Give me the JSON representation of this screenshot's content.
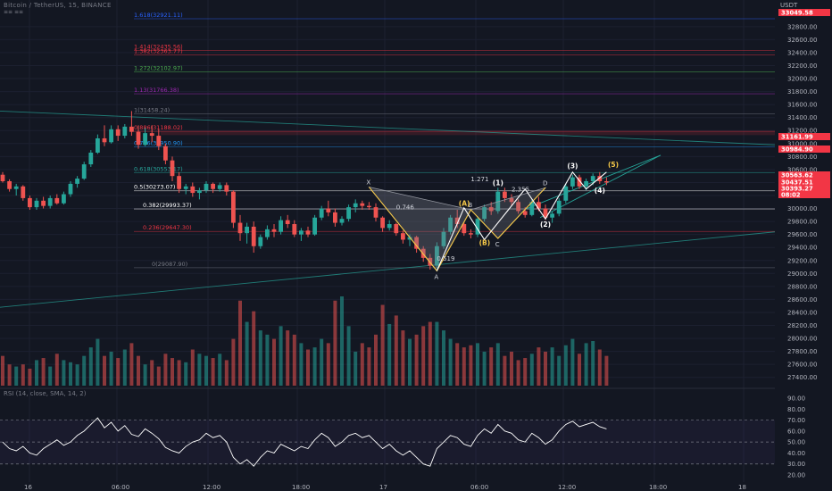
{
  "header": {
    "symbol_line": "Bitcoin / TetherUS, 15, BINANCE",
    "sub": "≡≡ ≡≡"
  },
  "price_axis": {
    "currency": "USDT",
    "ticks": [
      "32800.00",
      "32600.00",
      "32400.00",
      "32200.00",
      "32000.00",
      "31800.00",
      "31600.00",
      "31400.00",
      "31200.00",
      "31000.00",
      "30800.00",
      "30600.00",
      "30400.00",
      "30200.00",
      "30000.00",
      "29800.00",
      "29600.00",
      "29400.00",
      "29200.00",
      "29000.00",
      "28800.00",
      "28600.00",
      "28400.00",
      "28200.00",
      "28000.00",
      "27800.00",
      "27600.00",
      "27400.00"
    ]
  },
  "price_labels": [
    {
      "text": "33049.58",
      "color": "#f23645"
    },
    {
      "text": "31161.99",
      "color": "#f23645"
    },
    {
      "text": "30984.90",
      "color": "#f23645"
    },
    {
      "text": "30563.62",
      "color": "#f23645"
    },
    {
      "text": "30437.51",
      "color": "#f23645"
    },
    {
      "text": "30393.27",
      "color": "#f23645"
    },
    {
      "text": "08:02",
      "color": "#f23645"
    }
  ],
  "rsi_axis": {
    "ticks": [
      "90.00",
      "80.00",
      "70.00",
      "60.00",
      "50.00",
      "40.00",
      "30.00",
      "20.00"
    ]
  },
  "time_axis": {
    "ticks": [
      "16",
      "06:00",
      "12:00",
      "18:00",
      "17",
      "06:00",
      "12:00",
      "18:00",
      "18"
    ]
  },
  "fib_levels": [
    {
      "label": "1.618(32921.11)",
      "price": 32921,
      "color": "#2962ff"
    },
    {
      "label": "1.414(32435.56)",
      "price": 32435,
      "color": "#f23645"
    },
    {
      "label": "1.382(32363.77)",
      "price": 32363,
      "color": "#f23645"
    },
    {
      "label": "1.272(32102.97)",
      "price": 32103,
      "color": "#4caf50"
    },
    {
      "label": "1.13(31766.38)",
      "price": 31766,
      "color": "#9c27b0"
    },
    {
      "label": "1(31458.24)",
      "price": 31458,
      "color": "#787b86"
    },
    {
      "label": "0.886(31188.02)",
      "price": 31188,
      "color": "#f23645"
    },
    {
      "label": "0.786(30950.90)",
      "price": 30951,
      "color": "#2196f3"
    },
    {
      "label": "0.618(30553.17)",
      "price": 30553,
      "color": "#26a69a"
    },
    {
      "label": "0.5(30273.07)",
      "price": 30273,
      "color": "#ffffff"
    },
    {
      "label": "0.382(29993.37)",
      "price": 29993,
      "color": "#ffffff"
    },
    {
      "label": "0.236(29647.30)",
      "price": 29647,
      "color": "#f23645"
    },
    {
      "label": "0(29087.90)",
      "price": 29088,
      "color": "#787b86"
    }
  ],
  "pattern": {
    "points": [
      {
        "label": "X",
        "time": 54,
        "price": 30330
      },
      {
        "label": "A",
        "time": 64,
        "price": 29040
      },
      {
        "label": "B",
        "time": 69,
        "price": 29980
      },
      {
        "label": "C",
        "time": 73,
        "price": 29540
      },
      {
        "label": "D",
        "time": 80,
        "price": 30320
      }
    ],
    "ratios": [
      "0.746",
      "0.519",
      "1.271",
      "2.355"
    ],
    "wave_labels": [
      "(A)",
      "(B)",
      "(1)",
      "(2)",
      "(3)",
      "(4)",
      "(5)"
    ]
  },
  "indicator": {
    "title": "RSI (14, close, SMA, 14, 2)"
  },
  "chart_data": {
    "type": "candlestick",
    "title": "Bitcoin / TetherUS, 15, BINANCE",
    "ylim": [
      27300,
      33100
    ],
    "rsi_ylim": [
      20,
      90
    ],
    "rsi_bands": [
      70,
      50,
      30
    ],
    "colors": {
      "up": "#26a69a",
      "down": "#ef5350"
    },
    "candles": [
      [
        30520,
        30560,
        30400,
        30420
      ],
      [
        30420,
        30450,
        30260,
        30300
      ],
      [
        30300,
        30380,
        30200,
        30340
      ],
      [
        30340,
        30360,
        30120,
        30160
      ],
      [
        30160,
        30200,
        29980,
        30020
      ],
      [
        30020,
        30160,
        29980,
        30120
      ],
      [
        30120,
        30180,
        30000,
        30040
      ],
      [
        30040,
        30200,
        30000,
        30160
      ],
      [
        30160,
        30220,
        30060,
        30080
      ],
      [
        30080,
        30260,
        30060,
        30220
      ],
      [
        30220,
        30420,
        30180,
        30380
      ],
      [
        30380,
        30500,
        30320,
        30460
      ],
      [
        30460,
        30720,
        30440,
        30680
      ],
      [
        30680,
        30900,
        30640,
        30860
      ],
      [
        30860,
        31140,
        30840,
        31080
      ],
      [
        31080,
        31280,
        30960,
        31020
      ],
      [
        31020,
        31280,
        31000,
        31220
      ],
      [
        31220,
        31280,
        31040,
        31120
      ],
      [
        31120,
        31300,
        31080,
        31260
      ],
      [
        31260,
        31500,
        31120,
        31180
      ],
      [
        31180,
        31280,
        30920,
        30980
      ],
      [
        30980,
        31240,
        30960,
        31160
      ],
      [
        31160,
        31280,
        31020,
        31120
      ],
      [
        31120,
        31220,
        30900,
        30960
      ],
      [
        30960,
        31000,
        30680,
        30740
      ],
      [
        30740,
        30800,
        30420,
        30500
      ],
      [
        30500,
        30560,
        30240,
        30300
      ],
      [
        30300,
        30380,
        30220,
        30340
      ],
      [
        30340,
        30400,
        30180,
        30240
      ],
      [
        30240,
        30320,
        30140,
        30280
      ],
      [
        30280,
        30420,
        30240,
        30380
      ],
      [
        30380,
        30400,
        30240,
        30300
      ],
      [
        30300,
        30400,
        30260,
        30360
      ],
      [
        30360,
        30400,
        30200,
        30260
      ],
      [
        30260,
        30280,
        29700,
        29780
      ],
      [
        29780,
        29900,
        29500,
        29620
      ],
      [
        29620,
        29780,
        29460,
        29720
      ],
      [
        29720,
        29800,
        29320,
        29420
      ],
      [
        29420,
        29600,
        29380,
        29560
      ],
      [
        29560,
        29740,
        29520,
        29680
      ],
      [
        29680,
        29760,
        29560,
        29640
      ],
      [
        29640,
        29880,
        29600,
        29820
      ],
      [
        29820,
        29900,
        29700,
        29760
      ],
      [
        29760,
        29820,
        29560,
        29600
      ],
      [
        29600,
        29700,
        29500,
        29660
      ],
      [
        29660,
        29720,
        29560,
        29600
      ],
      [
        29600,
        29900,
        29580,
        29860
      ],
      [
        29860,
        30040,
        29820,
        30000
      ],
      [
        30000,
        30120,
        29880,
        29940
      ],
      [
        29940,
        30000,
        29720,
        29780
      ],
      [
        29780,
        29880,
        29740,
        29840
      ],
      [
        29840,
        30060,
        29800,
        30020
      ],
      [
        30020,
        30140,
        29940,
        30080
      ],
      [
        30080,
        30120,
        29980,
        30040
      ],
      [
        30040,
        30100,
        29980,
        30020
      ],
      [
        30020,
        30080,
        29800,
        29860
      ],
      [
        29860,
        29880,
        29640,
        29700
      ],
      [
        29700,
        29820,
        29660,
        29760
      ],
      [
        29760,
        29780,
        29580,
        29620
      ],
      [
        29620,
        29660,
        29460,
        29520
      ],
      [
        29520,
        29600,
        29420,
        29560
      ],
      [
        29560,
        29580,
        29320,
        29380
      ],
      [
        29380,
        29420,
        29180,
        29240
      ],
      [
        29240,
        29300,
        29060,
        29120
      ],
      [
        29120,
        29480,
        29080,
        29420
      ],
      [
        29420,
        29700,
        29380,
        29640
      ],
      [
        29640,
        29900,
        29600,
        29860
      ],
      [
        29860,
        29980,
        29700,
        29760
      ],
      [
        29760,
        29800,
        29580,
        29620
      ],
      [
        29620,
        29680,
        29540,
        29600
      ],
      [
        29600,
        29880,
        29560,
        29840
      ],
      [
        29840,
        30060,
        29800,
        30020
      ],
      [
        30020,
        30100,
        29900,
        29960
      ],
      [
        29960,
        30320,
        29920,
        30260
      ],
      [
        30260,
        30320,
        30100,
        30160
      ],
      [
        30160,
        30220,
        30040,
        30100
      ],
      [
        30100,
        30140,
        29920,
        29960
      ],
      [
        29960,
        30020,
        29860,
        29900
      ],
      [
        29900,
        30140,
        29880,
        30100
      ],
      [
        30100,
        30180,
        29960,
        30000
      ],
      [
        30000,
        30060,
        29820,
        29860
      ],
      [
        29860,
        29960,
        29780,
        29920
      ],
      [
        29920,
        30160,
        29880,
        30120
      ],
      [
        30120,
        30380,
        30080,
        30340
      ],
      [
        30340,
        30520,
        30300,
        30480
      ],
      [
        30480,
        30520,
        30300,
        30340
      ],
      [
        30340,
        30460,
        30280,
        30420
      ],
      [
        30420,
        30540,
        30360,
        30500
      ],
      [
        30500,
        30560,
        30380,
        30420
      ],
      [
        30420,
        30480,
        30360,
        30400
      ]
    ],
    "volume": [
      14,
      10,
      9,
      10,
      8,
      12,
      13,
      9,
      15,
      12,
      11,
      10,
      14,
      18,
      22,
      14,
      16,
      13,
      17,
      20,
      14,
      10,
      12,
      9,
      15,
      13,
      12,
      11,
      17,
      15,
      14,
      13,
      15,
      12,
      22,
      40,
      30,
      35,
      26,
      24,
      22,
      28,
      26,
      24,
      20,
      17,
      18,
      22,
      20,
      40,
      42,
      28,
      16,
      20,
      18,
      24,
      38,
      29,
      33,
      26,
      22,
      24,
      28,
      30,
      30,
      26,
      22,
      20,
      18,
      19,
      20,
      16,
      18,
      20,
      14,
      16,
      12,
      13,
      15,
      18,
      16,
      18,
      14,
      19,
      22,
      15,
      20,
      21,
      17,
      14
    ],
    "rsi": [
      50,
      44,
      42,
      46,
      40,
      38,
      44,
      48,
      52,
      47,
      50,
      56,
      60,
      66,
      72,
      63,
      68,
      60,
      65,
      57,
      55,
      62,
      58,
      53,
      45,
      42,
      40,
      46,
      50,
      52,
      58,
      54,
      56,
      50,
      36,
      30,
      34,
      28,
      36,
      42,
      40,
      48,
      45,
      42,
      46,
      44,
      52,
      58,
      54,
      46,
      50,
      56,
      58,
      54,
      56,
      50,
      44,
      48,
      42,
      38,
      42,
      36,
      30,
      28,
      44,
      50,
      56,
      54,
      48,
      46,
      56,
      62,
      58,
      66,
      60,
      58,
      52,
      50,
      58,
      54,
      48,
      52,
      60,
      66,
      69,
      64,
      66,
      68,
      64,
      62
    ]
  }
}
